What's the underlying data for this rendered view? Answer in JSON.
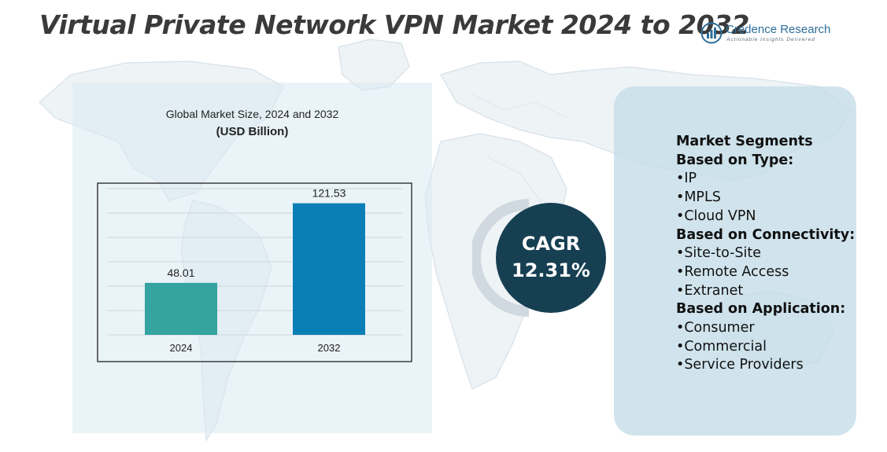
{
  "title": "Virtual Private Network VPN Market 2024 to 2032",
  "logo": {
    "name": "Credence Research",
    "tagline": "Actionable Insights Delivered",
    "icon": "bar-chart-logo-icon"
  },
  "chart_data": {
    "type": "bar",
    "title": "Global Market Size, 2024 and 2032",
    "subtitle": "(USD Billion)",
    "categories": [
      "2024",
      "2032"
    ],
    "values": [
      48.01,
      121.53
    ],
    "value_labels": [
      "48.01",
      "121.53"
    ],
    "colors": [
      "#35a39f",
      "#0a7fb5"
    ],
    "ylim": [
      0,
      135
    ],
    "grid": true,
    "legend": "none"
  },
  "cagr": {
    "label": "CAGR",
    "value": "12.31%",
    "color": "#163f52"
  },
  "segments": {
    "title": "Market Segments",
    "groups": [
      {
        "heading": "Based on Type:",
        "items": [
          "•IP",
          "•MPLS",
          "•Cloud VPN"
        ]
      },
      {
        "heading": "Based on Connectivity:",
        "items": [
          "•Site-to-Site",
          "•Remote Access",
          "•Extranet"
        ]
      },
      {
        "heading": "Based on Application:",
        "items": [
          "•Consumer",
          "•Commercial",
          "•Service Providers"
        ]
      }
    ]
  }
}
